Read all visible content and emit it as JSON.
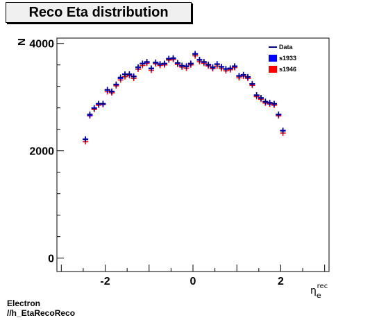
{
  "title": "Reco Eta distribution",
  "caption": {
    "line1": "Electron",
    "line2": "//h_EtaRecoReco"
  },
  "colors": {
    "data": "#00007f",
    "s1933": "#0000ff",
    "s1946": "#ff0000"
  },
  "chart_data": {
    "type": "scatter",
    "title": "Reco Eta distribution",
    "xlabel": "η_e^rec",
    "ylabel": "N",
    "xlim": [
      -3.1,
      3.1
    ],
    "ylim": [
      -250,
      4100
    ],
    "x_ticks": [
      -2,
      0,
      2
    ],
    "y_ticks": [
      0,
      2000,
      4000
    ],
    "grid": false,
    "legend_position": "top-right",
    "x": [
      -2.45,
      -2.35,
      -2.25,
      -2.15,
      -2.05,
      -1.95,
      -1.85,
      -1.75,
      -1.65,
      -1.55,
      -1.45,
      -1.35,
      -1.25,
      -1.15,
      -1.05,
      -0.95,
      -0.85,
      -0.75,
      -0.65,
      -0.55,
      -0.45,
      -0.35,
      -0.25,
      -0.15,
      -0.05,
      0.05,
      0.15,
      0.25,
      0.35,
      0.45,
      0.55,
      0.65,
      0.75,
      0.85,
      0.95,
      1.05,
      1.15,
      1.25,
      1.35,
      1.45,
      1.55,
      1.65,
      1.75,
      1.85,
      1.95,
      2.05,
      2.15,
      2.25,
      2.35,
      2.45
    ],
    "series": [
      {
        "name": "Data",
        "values": [
          2210,
          2680,
          2790,
          2880,
          2880,
          3140,
          3110,
          3240,
          3370,
          3420,
          3430,
          3380,
          3560,
          3620,
          3660,
          3530,
          3650,
          3620,
          3630,
          3710,
          3730,
          3640,
          3590,
          3570,
          3630,
          3800,
          3690,
          3660,
          3610,
          3560,
          3610,
          3560,
          3520,
          3540,
          3580,
          3390,
          3420,
          3380,
          3250,
          3040,
          2990,
          2920,
          2900,
          2880,
          2680,
          2370,
          0,
          0,
          0,
          0
        ]
      },
      {
        "name": "s1933",
        "values": [
          2220,
          2660,
          2800,
          2870,
          2870,
          3130,
          3100,
          3230,
          3350,
          3430,
          3420,
          3390,
          3550,
          3630,
          3650,
          3540,
          3640,
          3610,
          3620,
          3720,
          3720,
          3630,
          3580,
          3580,
          3620,
          3810,
          3700,
          3650,
          3600,
          3550,
          3620,
          3570,
          3530,
          3530,
          3570,
          3400,
          3410,
          3370,
          3240,
          3030,
          2980,
          2910,
          2890,
          2870,
          2670,
          2380,
          0,
          0,
          0,
          0
        ]
      },
      {
        "name": "s1946",
        "values": [
          2170,
          2650,
          2770,
          2850,
          2860,
          3100,
          3080,
          3210,
          3320,
          3380,
          3400,
          3350,
          3520,
          3590,
          3630,
          3500,
          3620,
          3590,
          3600,
          3690,
          3700,
          3610,
          3560,
          3540,
          3600,
          3770,
          3660,
          3630,
          3580,
          3530,
          3580,
          3530,
          3490,
          3510,
          3550,
          3360,
          3390,
          3350,
          3220,
          3010,
          2960,
          2890,
          2870,
          2850,
          2650,
          2330,
          0,
          0,
          0,
          0
        ]
      }
    ]
  }
}
